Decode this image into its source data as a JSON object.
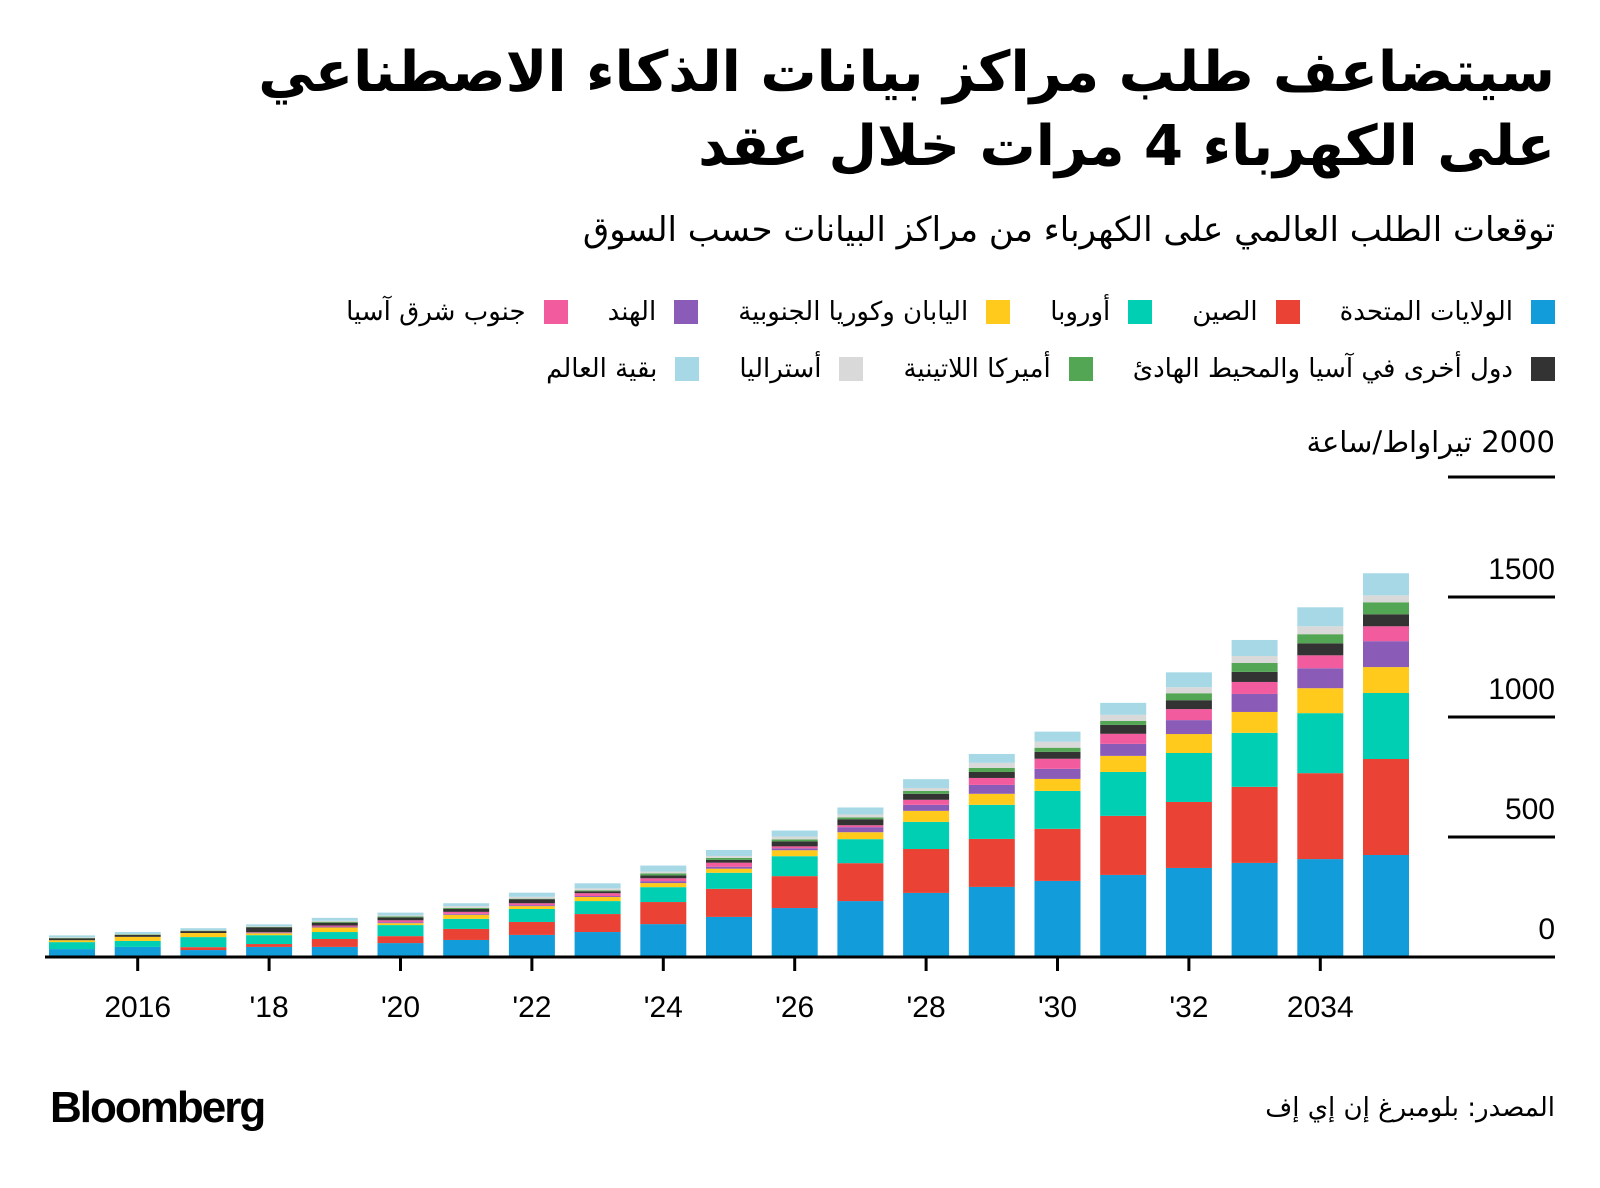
{
  "header": {
    "title_line_1": "سيتضاعف طلب مراكز بيانات الذكاء الاصطناعي",
    "title_line_2": "على الكهرباء 4 مرات خلال عقد",
    "subtitle": "توقعات الطلب العالمي على الكهرباء من مراكز البيانات حسب السوق"
  },
  "legend": {
    "row_1": [
      {
        "label": "الولايات المتحدة",
        "color": "#129CDA"
      },
      {
        "label": "الصين",
        "color": "#EA4335"
      },
      {
        "label": "أوروبا",
        "color": "#00CFB3"
      },
      {
        "label": "اليابان وكوريا الجنوبية",
        "color": "#FFCA1C"
      },
      {
        "label": "الهند",
        "color": "#8B5BB8"
      },
      {
        "label": "جنوب شرق آسيا",
        "color": "#F25C9E"
      }
    ],
    "row_2": [
      {
        "label": "دول أخرى في آسيا والمحيط الهادئ",
        "color": "#333333"
      },
      {
        "label": "أميركا اللاتينية",
        "color": "#53A653"
      },
      {
        "label": "أستراليا",
        "color": "#D9D9D9"
      },
      {
        "label": "بقية العالم",
        "color": "#A6D8E6"
      }
    ]
  },
  "footer": {
    "source": "المصدر: بلومبرغ إن إي إف",
    "logo": "Bloomberg"
  },
  "chart_data": {
    "type": "bar",
    "stacked": true,
    "title": "سيتضاعف طلب مراكز بيانات الذكاء الاصطناعي على الكهرباء 4 مرات خلال عقد",
    "subtitle": "توقعات الطلب العالمي على الكهرباء من مراكز البيانات حسب السوق",
    "xlabel": "",
    "ylabel": "تيراواط/ساعة",
    "unit_label": "2000 تيراواط/ساعة",
    "ylim": [
      0,
      2000
    ],
    "y_ticks": [
      0,
      500,
      1000,
      1500,
      2000
    ],
    "y_tick_labels": [
      "0",
      "500",
      "1000",
      "1500",
      "2000"
    ],
    "y_axis_side": "right",
    "grid": false,
    "legend_position": "top",
    "categories": [
      "2015",
      "2016",
      "2017",
      "2018",
      "2019",
      "2020",
      "2021",
      "2022",
      "2023",
      "2024",
      "2025",
      "2026",
      "2027",
      "2028",
      "2029",
      "2030",
      "2031",
      "2032",
      "2033",
      "2034",
      "2035"
    ],
    "x_tick_labels": [
      {
        "year": "2016",
        "label": "2016"
      },
      {
        "year": "2018",
        "label": "'18"
      },
      {
        "year": "2020",
        "label": "'20"
      },
      {
        "year": "2022",
        "label": "'22"
      },
      {
        "year": "2024",
        "label": "'24"
      },
      {
        "year": "2026",
        "label": "'26"
      },
      {
        "year": "2028",
        "label": "'28"
      },
      {
        "year": "2030",
        "label": "'30"
      },
      {
        "year": "2032",
        "label": "'32"
      },
      {
        "year": "2034",
        "label": "2034"
      }
    ],
    "series": [
      {
        "name": "الولايات المتحدة",
        "color": "#129CDA",
        "values": [
          33,
          42,
          29,
          42,
          42,
          58,
          71,
          92,
          104,
          137,
          167,
          204,
          233,
          267,
          292,
          317,
          342,
          371,
          392,
          408,
          425
        ]
      },
      {
        "name": "الصين",
        "color": "#EA4335",
        "values": [
          0,
          0,
          12,
          12,
          33,
          29,
          46,
          54,
          75,
          92,
          117,
          133,
          158,
          183,
          200,
          217,
          246,
          275,
          317,
          358,
          400
        ]
      },
      {
        "name": "أوروبا",
        "color": "#00CFB3",
        "values": [
          29,
          25,
          42,
          37,
          29,
          46,
          42,
          54,
          54,
          62,
          67,
          83,
          100,
          113,
          142,
          158,
          183,
          204,
          225,
          250,
          275
        ]
      },
      {
        "name": "اليابان وكوريا الجنوبية",
        "color": "#FFCA1C",
        "values": [
          8,
          17,
          17,
          8,
          19,
          8,
          17,
          12,
          17,
          17,
          17,
          25,
          29,
          46,
          46,
          50,
          67,
          79,
          87,
          104,
          108
        ]
      },
      {
        "name": "الهند",
        "color": "#8B5BB8",
        "values": [
          0,
          0,
          0,
          2,
          4,
          4,
          4,
          4,
          4,
          8,
          8,
          8,
          21,
          25,
          37,
          42,
          50,
          58,
          75,
          83,
          108
        ]
      },
      {
        "name": "جنوب شرق آسيا",
        "color": "#F25C9E",
        "values": [
          0,
          0,
          0,
          2,
          4,
          8,
          8,
          8,
          12,
          12,
          17,
          8,
          8,
          21,
          29,
          42,
          42,
          46,
          50,
          54,
          62
        ]
      },
      {
        "name": "دول أخرى في آسيا والمحيط الهادئ",
        "color": "#333333",
        "values": [
          8,
          8,
          8,
          21,
          12,
          12,
          12,
          17,
          8,
          12,
          12,
          21,
          25,
          25,
          25,
          29,
          37,
          37,
          42,
          50,
          50
        ]
      },
      {
        "name": "أميركا اللاتينية",
        "color": "#53A653",
        "values": [
          2,
          2,
          2,
          2,
          4,
          4,
          4,
          2,
          4,
          8,
          8,
          8,
          8,
          12,
          17,
          17,
          17,
          29,
          37,
          38,
          50
        ]
      },
      {
        "name": "أستراليا",
        "color": "#D9D9D9",
        "values": [
          2,
          2,
          2,
          2,
          4,
          4,
          8,
          8,
          8,
          8,
          8,
          12,
          12,
          12,
          21,
          25,
          25,
          25,
          29,
          33,
          29
        ]
      },
      {
        "name": "بقية العالم",
        "color": "#A6D8E6",
        "values": [
          8,
          8,
          8,
          8,
          12,
          12,
          12,
          17,
          21,
          25,
          25,
          25,
          29,
          37,
          37,
          42,
          50,
          62,
          67,
          79,
          92
        ]
      }
    ]
  }
}
